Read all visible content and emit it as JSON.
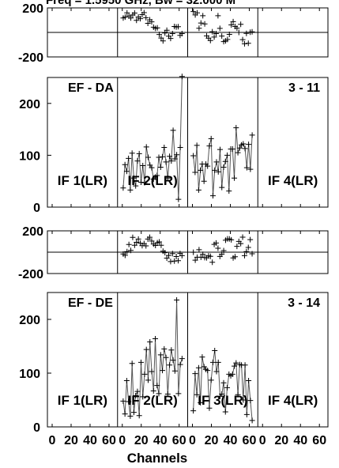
{
  "chart_data": {
    "type": "line",
    "title": "Freq = 1.5950 GHz, Bw = 32.000 M",
    "xlabel": "Channels",
    "x_ticklabels": [
      "0",
      "20",
      "40",
      "60"
    ],
    "phase_range": [
      -200,
      200
    ],
    "phase_ticklabels": [
      "200",
      "-200"
    ],
    "amp_range": [
      0,
      250
    ],
    "amp_ticklabels": [
      "200",
      "100",
      "0"
    ],
    "if_labels": [
      "IF 1(LR)",
      "IF 2(LR)",
      "IF 3(LR)",
      "IF 4(LR)"
    ],
    "panels": [
      {
        "baseline": "EF - DA",
        "scan": "3 - 11",
        "if_labels_shown": [
          "IF 1(LR)",
          "IF 2(LR)",
          "IF 4(LR)"
        ],
        "phase": {
          "IF 2": [
            118,
            125,
            160,
            134,
            118,
            143,
            158,
            98,
            126,
            112,
            145,
            161,
            120,
            74,
            103,
            86,
            43,
            33,
            37,
            -17,
            -46,
            -69,
            -5,
            18,
            -31,
            -49,
            -10,
            48,
            44,
            47,
            -24,
            -10
          ],
          "IF 3": [
            170,
            143,
            160,
            34,
            77,
            136,
            69,
            -28,
            -47,
            -66,
            6,
            -38,
            -10,
            136,
            33,
            -30,
            -75,
            -69,
            -57,
            -16,
            61,
            88,
            48,
            35,
            0,
            66,
            -59,
            -93,
            -8,
            -89,
            2,
            5
          ]
        },
        "amplitude": {
          "IF 2": [
            37,
            82,
            69,
            94,
            33,
            104,
            56,
            41,
            89,
            103,
            48,
            80,
            47,
            116,
            96,
            81,
            76,
            54,
            58,
            61,
            96,
            77,
            97,
            115,
            87,
            56,
            98,
            89,
            148,
            93,
            101,
            15,
            115,
            252
          ],
          "IF 3": [
            99,
            67,
            119,
            33,
            71,
            83,
            50,
            83,
            79,
            118,
            132,
            22,
            71,
            87,
            68,
            111,
            38,
            77,
            88,
            100,
            31,
            112,
            112,
            56,
            153,
            105,
            114,
            120,
            122,
            113,
            76,
            121,
            73,
            139
          ]
        }
      },
      {
        "baseline": "EF - DE",
        "scan": "3 - 14",
        "if_labels_shown": [
          "IF 1(LR)",
          "IF 2(LR)",
          "IF 3(LR)",
          "IF 4(LR)"
        ],
        "phase": {
          "IF 2": [
            -17,
            -30,
            6,
            72,
            17,
            139,
            65,
            93,
            123,
            84,
            61,
            81,
            59,
            123,
            140,
            105,
            76,
            63,
            89,
            96,
            65,
            9,
            -5,
            -56,
            -31,
            -88,
            -13,
            -83,
            -41,
            -80,
            -12,
            -32
          ],
          "IF 3": [
            -1,
            -75,
            -47,
            23,
            -47,
            -20,
            -51,
            -53,
            -34,
            -39,
            -94,
            73,
            86,
            37,
            -40,
            -19,
            15,
            112,
            125,
            124,
            116,
            -54,
            -43,
            55,
            101,
            81,
            141,
            -32,
            6,
            44,
            118,
            -15
          ]
        },
        "amplitude": {
          "IF 2": [
            48,
            24,
            86,
            47,
            20,
            118,
            27,
            58,
            66,
            21,
            120,
            56,
            98,
            144,
            87,
            158,
            103,
            67,
            164,
            77,
            62,
            134,
            105,
            145,
            129,
            61,
            115,
            143,
            124,
            104,
            236,
            62,
            116,
            127
          ],
          "IF 3": [
            30,
            99,
            60,
            110,
            45,
            130,
            112,
            107,
            105,
            35,
            87,
            120,
            142,
            103,
            120,
            57,
            61,
            82,
            28,
            73,
            98,
            95,
            98,
            113,
            119,
            60,
            116,
            115,
            50,
            115,
            23,
            86,
            49,
            12
          ]
        }
      }
    ]
  }
}
